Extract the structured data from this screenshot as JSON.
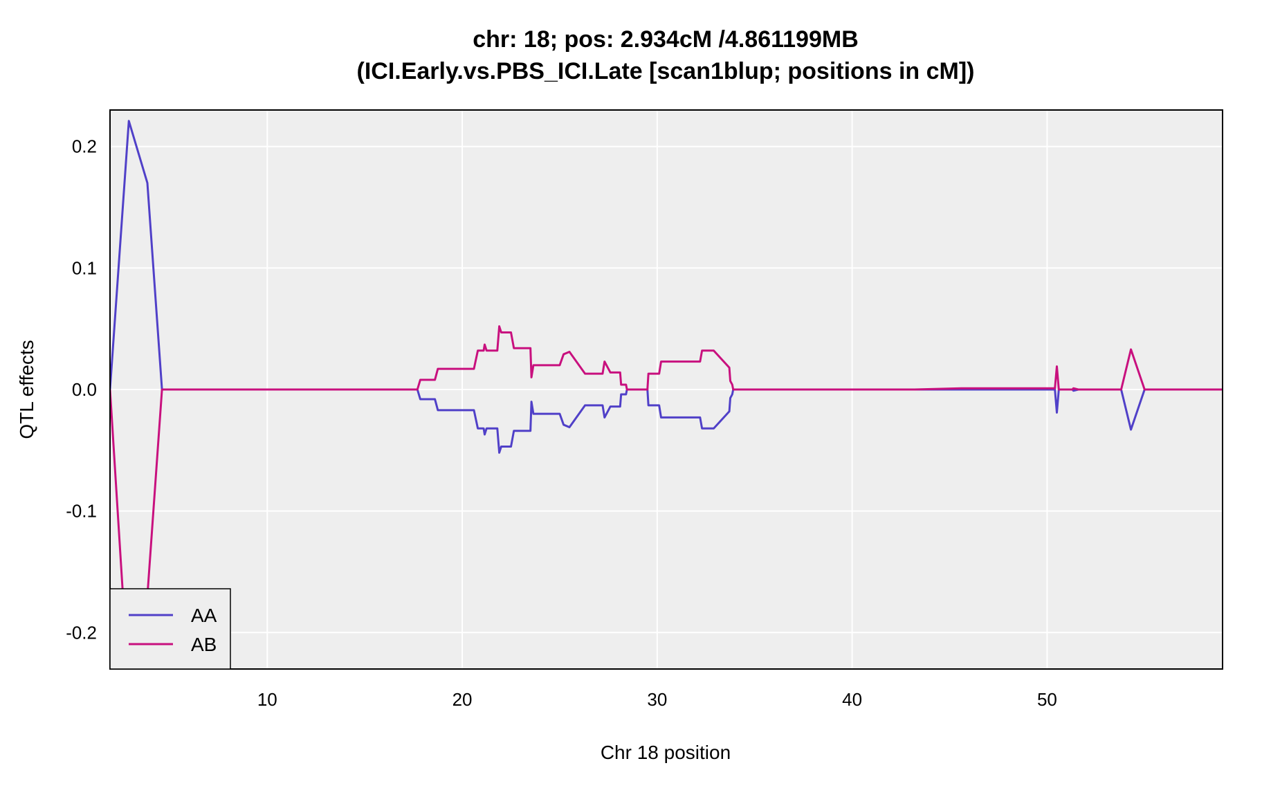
{
  "chart_data": {
    "type": "line",
    "title": "chr: 18; pos: 2.934cM /4.861199MB",
    "subtitle": "(ICI.Early.vs.PBS_ICI.Late [scan1blup; positions in cM])",
    "xlabel": "Chr 18 position",
    "ylabel": "QTL effects",
    "xlim": [
      1.934,
      59
    ],
    "ylim": [
      -0.23,
      0.23
    ],
    "x_ticks": [
      10,
      20,
      30,
      40,
      50
    ],
    "x_tick_labels": [
      "10",
      "20",
      "30",
      "40",
      "50"
    ],
    "y_ticks": [
      -0.2,
      -0.1,
      0.0,
      0.1,
      0.2
    ],
    "y_tick_labels": [
      "-0.2",
      "-0.1",
      "0.0",
      "0.1",
      "0.2"
    ],
    "grid": true,
    "legend_position": "bottom-left",
    "series": [
      {
        "name": "AA",
        "color": "#5040c8",
        "points": [
          [
            1.934,
            0.0
          ],
          [
            2.9,
            0.221
          ],
          [
            3.85,
            0.17
          ],
          [
            4.6,
            0.0
          ],
          [
            17.7,
            0.0
          ],
          [
            17.85,
            -0.008
          ],
          [
            18.6,
            -0.008
          ],
          [
            18.75,
            -0.017
          ],
          [
            20.6,
            -0.017
          ],
          [
            20.8,
            -0.032
          ],
          [
            21.1,
            -0.032
          ],
          [
            21.15,
            -0.037
          ],
          [
            21.25,
            -0.032
          ],
          [
            21.8,
            -0.032
          ],
          [
            21.9,
            -0.052
          ],
          [
            22.0,
            -0.047
          ],
          [
            22.5,
            -0.047
          ],
          [
            22.65,
            -0.034
          ],
          [
            23.5,
            -0.034
          ],
          [
            23.55,
            -0.01
          ],
          [
            23.65,
            -0.02
          ],
          [
            25.0,
            -0.02
          ],
          [
            25.2,
            -0.029
          ],
          [
            25.5,
            -0.031
          ],
          [
            26.3,
            -0.013
          ],
          [
            27.2,
            -0.013
          ],
          [
            27.3,
            -0.023
          ],
          [
            27.6,
            -0.014
          ],
          [
            28.1,
            -0.014
          ],
          [
            28.15,
            -0.004
          ],
          [
            28.4,
            -0.004
          ],
          [
            28.45,
            0.0
          ],
          [
            29.5,
            0.0
          ],
          [
            29.55,
            -0.013
          ],
          [
            30.1,
            -0.013
          ],
          [
            30.2,
            -0.023
          ],
          [
            32.2,
            -0.023
          ],
          [
            32.3,
            -0.032
          ],
          [
            32.9,
            -0.032
          ],
          [
            33.7,
            -0.018
          ],
          [
            33.75,
            -0.007
          ],
          [
            33.85,
            -0.004
          ],
          [
            33.9,
            0.0
          ],
          [
            42.6,
            0.0
          ],
          [
            42.65,
            0.0
          ],
          [
            43.2,
            0.0
          ],
          [
            45.6,
            0.0
          ],
          [
            50.4,
            0.0
          ],
          [
            50.5,
            -0.019
          ],
          [
            50.6,
            0.0
          ],
          [
            51.3,
            0.0
          ],
          [
            51.35,
            -0.001
          ],
          [
            51.6,
            0.0
          ],
          [
            52.3,
            0.0
          ],
          [
            52.9,
            0.0
          ],
          [
            53.8,
            0.0
          ],
          [
            54.3,
            -0.033
          ],
          [
            55.0,
            0.0
          ],
          [
            59.0,
            0.0
          ]
        ]
      },
      {
        "name": "AB",
        "color": "#c8107e",
        "points": [
          [
            1.934,
            0.0
          ],
          [
            2.6,
            -0.17
          ],
          [
            3.85,
            -0.17
          ],
          [
            4.6,
            0.0
          ],
          [
            17.7,
            0.0
          ],
          [
            17.85,
            0.008
          ],
          [
            18.6,
            0.008
          ],
          [
            18.75,
            0.017
          ],
          [
            20.6,
            0.017
          ],
          [
            20.8,
            0.032
          ],
          [
            21.1,
            0.032
          ],
          [
            21.15,
            0.037
          ],
          [
            21.25,
            0.032
          ],
          [
            21.8,
            0.032
          ],
          [
            21.9,
            0.052
          ],
          [
            22.0,
            0.047
          ],
          [
            22.5,
            0.047
          ],
          [
            22.65,
            0.034
          ],
          [
            23.5,
            0.034
          ],
          [
            23.55,
            0.01
          ],
          [
            23.65,
            0.02
          ],
          [
            25.0,
            0.02
          ],
          [
            25.2,
            0.029
          ],
          [
            25.5,
            0.031
          ],
          [
            26.3,
            0.013
          ],
          [
            27.2,
            0.013
          ],
          [
            27.3,
            0.023
          ],
          [
            27.6,
            0.014
          ],
          [
            28.1,
            0.014
          ],
          [
            28.15,
            0.004
          ],
          [
            28.4,
            0.004
          ],
          [
            28.45,
            0.0
          ],
          [
            29.5,
            0.0
          ],
          [
            29.55,
            0.013
          ],
          [
            30.1,
            0.013
          ],
          [
            30.2,
            0.023
          ],
          [
            32.2,
            0.023
          ],
          [
            32.3,
            0.032
          ],
          [
            32.9,
            0.032
          ],
          [
            33.7,
            0.018
          ],
          [
            33.75,
            0.007
          ],
          [
            33.85,
            0.004
          ],
          [
            33.9,
            0.0
          ],
          [
            42.6,
            0.0
          ],
          [
            42.65,
            0.0
          ],
          [
            43.2,
            0.0
          ],
          [
            45.6,
            0.001
          ],
          [
            50.4,
            0.001
          ],
          [
            50.5,
            0.019
          ],
          [
            50.6,
            0.0
          ],
          [
            51.3,
            0.0
          ],
          [
            51.35,
            0.001
          ],
          [
            51.6,
            0.0
          ],
          [
            52.3,
            0.0
          ],
          [
            52.9,
            0.0
          ],
          [
            53.8,
            0.0
          ],
          [
            54.3,
            0.033
          ],
          [
            55.0,
            0.0
          ],
          [
            59.0,
            0.0
          ]
        ]
      }
    ]
  }
}
